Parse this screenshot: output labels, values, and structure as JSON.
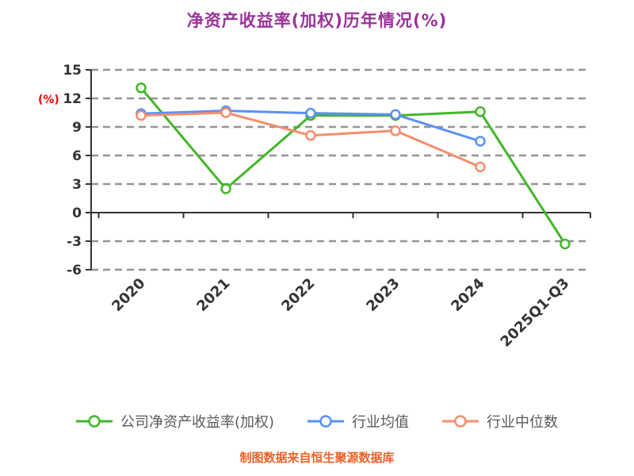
{
  "chart_data": {
    "type": "line",
    "title": "净资产收益率(加权)历年情况(%)",
    "ylabel": "(%)",
    "categories": [
      "2020",
      "2021",
      "2022",
      "2023",
      "2024",
      "2025Q1-Q3"
    ],
    "series": [
      {
        "name": "公司净资产收益率(加权)",
        "color": "#42b629",
        "values": [
          13.1,
          2.5,
          10.2,
          10.2,
          10.6,
          -3.3
        ]
      },
      {
        "name": "行业均值",
        "color": "#5b8ff9",
        "values": [
          10.4,
          10.7,
          10.45,
          10.3,
          7.5,
          null
        ]
      },
      {
        "name": "行业中位数",
        "color": "#f68d6d",
        "values": [
          10.2,
          10.5,
          8.1,
          8.6,
          4.8,
          null
        ]
      }
    ],
    "ylim": [
      -6,
      15
    ],
    "yticks": [
      15,
      12,
      9,
      6,
      3,
      0,
      -3,
      -6
    ],
    "grid": "dashed horizontal",
    "legend_position": "bottom",
    "marker": "open-circle"
  },
  "footer": "制图数据来自恒生聚源数据库",
  "colors": {
    "title": "#993399",
    "ylabel": "#ff0000",
    "axis": "#333333",
    "grid": "#949494",
    "tick_label": "#333333",
    "legend_text": "#595959",
    "footer": "#e8622a",
    "background": "#ffffff"
  }
}
